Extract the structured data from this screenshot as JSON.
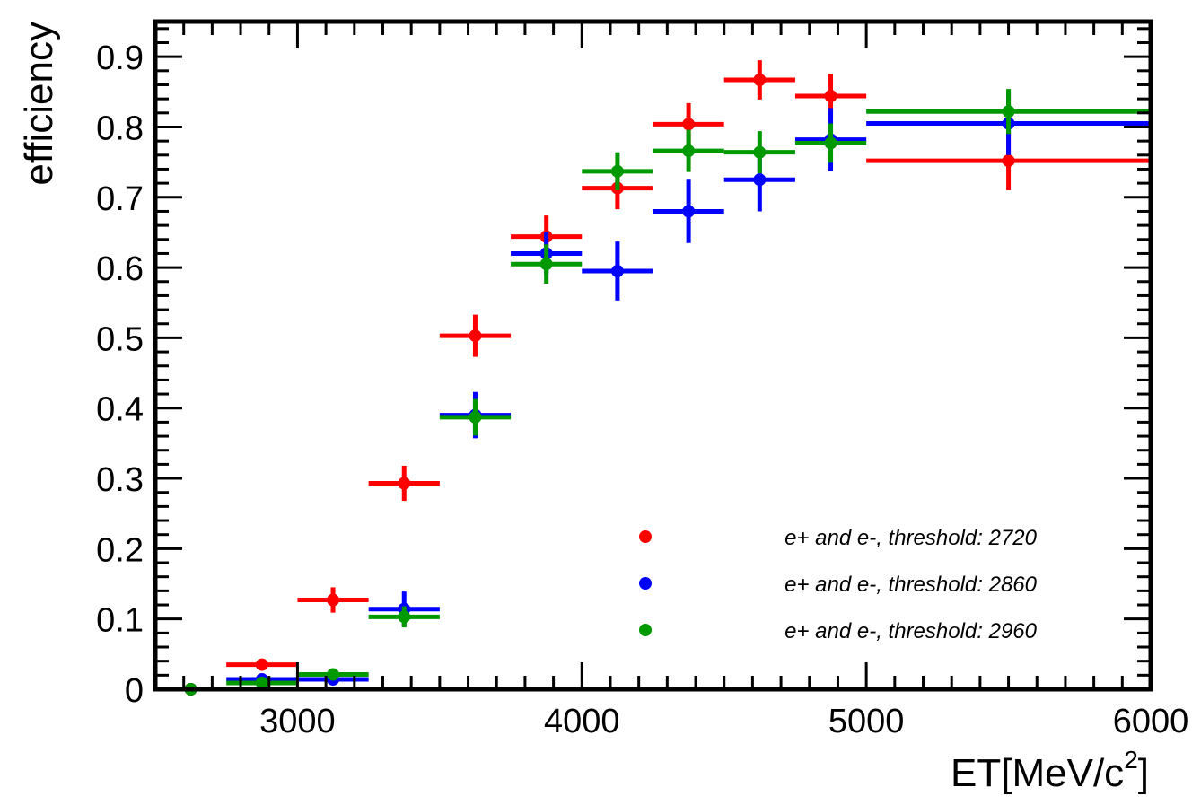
{
  "chart_data": {
    "type": "scatter",
    "xlabel_main": "ET[MeV/c",
    "xlabel_sup": "2",
    "xlabel_close": "]",
    "ylabel": "efficiency",
    "xlim": [
      2500,
      6000
    ],
    "ylim": [
      0,
      0.95
    ],
    "x_ticks": [
      3000,
      4000,
      5000,
      6000
    ],
    "x_tick_labels": [
      "3000",
      "4000",
      "5000",
      "6000"
    ],
    "y_ticks": [
      0,
      0.1,
      0.2,
      0.3,
      0.4,
      0.5,
      0.6,
      0.7,
      0.8,
      0.9
    ],
    "y_tick_labels": [
      "0",
      "0.1",
      "0.2",
      "0.3",
      "0.4",
      "0.5",
      "0.6",
      "0.7",
      "0.8",
      "0.9"
    ],
    "grid": false,
    "legend_placement": "bottom-right",
    "series": [
      {
        "name": "e+ and e-, threshold: 2720",
        "color": "#ff0000",
        "points": [
          {
            "x": 2625,
            "xlo": 2500,
            "xhi": 2750,
            "y": 0.0,
            "err": 0.0
          },
          {
            "x": 2875,
            "xlo": 2750,
            "xhi": 3000,
            "y": 0.035,
            "err": 0.007
          },
          {
            "x": 3125,
            "xlo": 3000,
            "xhi": 3250,
            "y": 0.127,
            "err": 0.018
          },
          {
            "x": 3375,
            "xlo": 3250,
            "xhi": 3500,
            "y": 0.293,
            "err": 0.025
          },
          {
            "x": 3625,
            "xlo": 3500,
            "xhi": 3750,
            "y": 0.503,
            "err": 0.03
          },
          {
            "x": 3875,
            "xlo": 3750,
            "xhi": 4000,
            "y": 0.644,
            "err": 0.03
          },
          {
            "x": 4125,
            "xlo": 4000,
            "xhi": 4250,
            "y": 0.713,
            "err": 0.03
          },
          {
            "x": 4375,
            "xlo": 4250,
            "xhi": 4500,
            "y": 0.804,
            "err": 0.03
          },
          {
            "x": 4625,
            "xlo": 4500,
            "xhi": 4750,
            "y": 0.867,
            "err": 0.028
          },
          {
            "x": 4875,
            "xlo": 4750,
            "xhi": 5000,
            "y": 0.844,
            "err": 0.032
          },
          {
            "x": 5500,
            "xlo": 5000,
            "xhi": 6000,
            "y": 0.752,
            "err": 0.042
          }
        ]
      },
      {
        "name": "e+ and e-, threshold: 2860",
        "color": "#0000ff",
        "points": [
          {
            "x": 2625,
            "xlo": 2500,
            "xhi": 2750,
            "y": 0.0,
            "err": 0.0
          },
          {
            "x": 2875,
            "xlo": 2750,
            "xhi": 3000,
            "y": 0.014,
            "err": 0.005
          },
          {
            "x": 3125,
            "xlo": 3000,
            "xhi": 3250,
            "y": 0.014,
            "err": 0.005
          },
          {
            "x": 3375,
            "xlo": 3250,
            "xhi": 3500,
            "y": 0.114,
            "err": 0.025
          },
          {
            "x": 3625,
            "xlo": 3500,
            "xhi": 3750,
            "y": 0.39,
            "err": 0.033
          },
          {
            "x": 3875,
            "xlo": 3750,
            "xhi": 4000,
            "y": 0.62,
            "err": 0.03
          },
          {
            "x": 4125,
            "xlo": 4000,
            "xhi": 4250,
            "y": 0.595,
            "err": 0.042
          },
          {
            "x": 4375,
            "xlo": 4250,
            "xhi": 4500,
            "y": 0.68,
            "err": 0.045
          },
          {
            "x": 4625,
            "xlo": 4500,
            "xhi": 4750,
            "y": 0.725,
            "err": 0.045
          },
          {
            "x": 4875,
            "xlo": 4750,
            "xhi": 5000,
            "y": 0.782,
            "err": 0.045
          },
          {
            "x": 5500,
            "xlo": 5000,
            "xhi": 6000,
            "y": 0.805,
            "err": 0.045
          }
        ]
      },
      {
        "name": "e+ and e-, threshold: 2960",
        "color": "#009900",
        "points": [
          {
            "x": 2625,
            "xlo": 2500,
            "xhi": 2750,
            "y": 0.0,
            "err": 0.0
          },
          {
            "x": 2875,
            "xlo": 2750,
            "xhi": 3000,
            "y": 0.009,
            "err": 0.004
          },
          {
            "x": 3125,
            "xlo": 3000,
            "xhi": 3250,
            "y": 0.021,
            "err": 0.006
          },
          {
            "x": 3375,
            "xlo": 3250,
            "xhi": 3500,
            "y": 0.103,
            "err": 0.015
          },
          {
            "x": 3625,
            "xlo": 3500,
            "xhi": 3750,
            "y": 0.387,
            "err": 0.026
          },
          {
            "x": 3875,
            "xlo": 3750,
            "xhi": 4000,
            "y": 0.605,
            "err": 0.028
          },
          {
            "x": 4125,
            "xlo": 4000,
            "xhi": 4250,
            "y": 0.737,
            "err": 0.027
          },
          {
            "x": 4375,
            "xlo": 4250,
            "xhi": 4500,
            "y": 0.766,
            "err": 0.03
          },
          {
            "x": 4625,
            "xlo": 4500,
            "xhi": 4750,
            "y": 0.764,
            "err": 0.03
          },
          {
            "x": 4875,
            "xlo": 4750,
            "xhi": 5000,
            "y": 0.777,
            "err": 0.028
          },
          {
            "x": 5500,
            "xlo": 5000,
            "xhi": 6000,
            "y": 0.822,
            "err": 0.032
          }
        ]
      }
    ]
  }
}
